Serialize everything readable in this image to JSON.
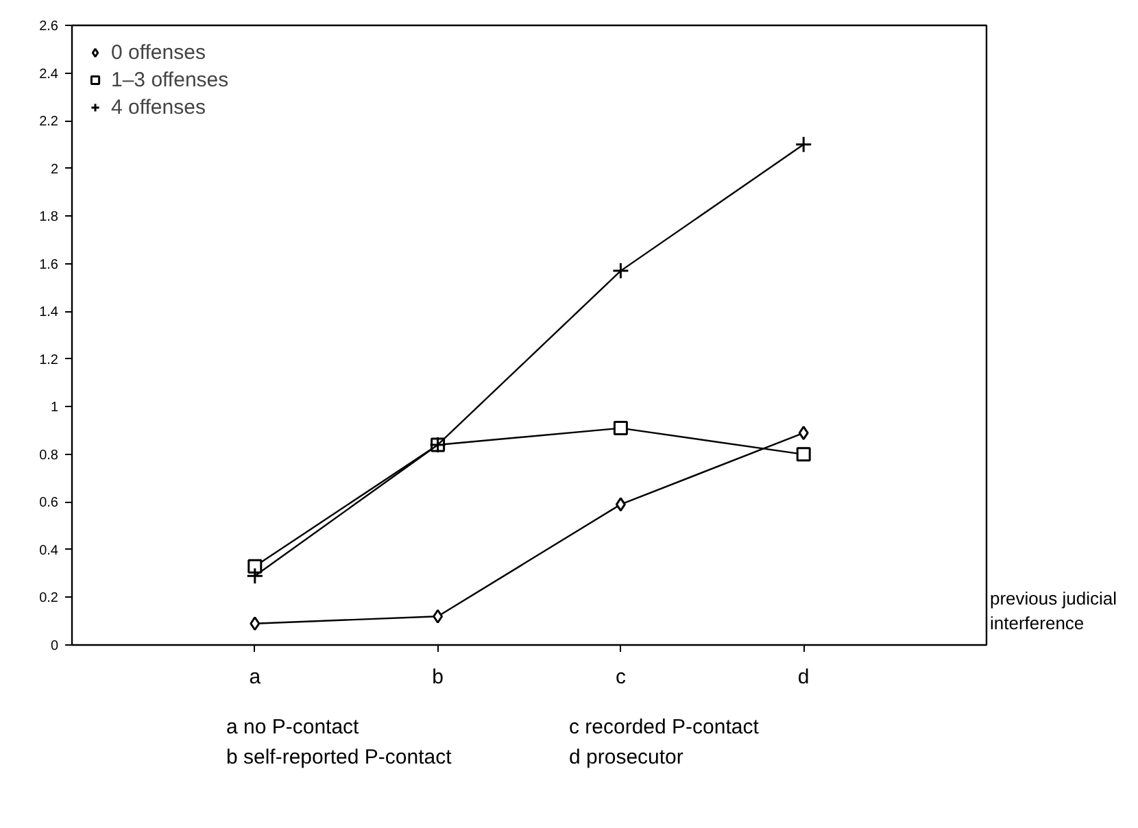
{
  "chart_data": {
    "type": "line",
    "xlabel": "previous judicial interference",
    "categories": [
      "a",
      "b",
      "c",
      "d"
    ],
    "series": [
      {
        "name": "0 offenses",
        "color": "#000000",
        "marker": "diamond",
        "values": [
          0.09,
          0.12,
          0.59,
          0.89
        ]
      },
      {
        "name": "1–3 offenses",
        "color": "#000000",
        "marker": "square",
        "values": [
          0.33,
          0.84,
          0.91,
          0.8
        ]
      },
      {
        "name": "4 offenses",
        "color": "#000000",
        "marker": "cross",
        "values": [
          0.29,
          0.84,
          1.57,
          2.1
        ]
      }
    ],
    "ylim": [
      0,
      2.6
    ],
    "yticks": [
      0,
      0.2,
      0.4,
      0.6,
      0.8,
      1,
      1.2,
      1.4,
      1.6,
      1.8,
      2,
      2.2,
      2.4,
      2.6
    ],
    "grid": false,
    "legend": "top left",
    "line_style": "solid",
    "annotations": [
      "a no P-contact",
      "b self-reported P-contact",
      "c recorded P-contact",
      "d prosecutor"
    ]
  }
}
